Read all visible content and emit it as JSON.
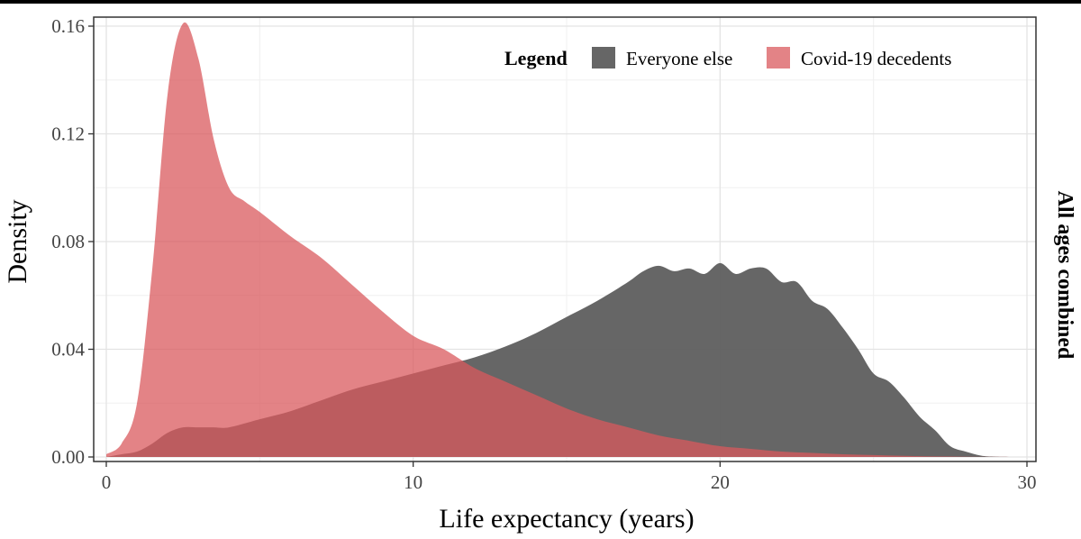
{
  "chart_data": {
    "type": "area",
    "title": "",
    "xlabel": "Life expectancy (years)",
    "ylabel": "Density",
    "facet_label": "All ages combined",
    "xlim": [
      0,
      30
    ],
    "ylim": [
      0,
      0.16
    ],
    "x_ticks": [
      0,
      10,
      20,
      30
    ],
    "x_tick_labels": [
      "0",
      "10",
      "20",
      "30"
    ],
    "y_ticks": [
      0,
      0.04,
      0.08,
      0.12,
      0.16
    ],
    "y_tick_labels": [
      "0.00",
      "0.04",
      "0.08",
      "0.12",
      "0.16"
    ],
    "grid": true,
    "legend": {
      "title": "Legend",
      "placement": "top-right",
      "entries": [
        "Everyone else",
        "Covid-19 decedents"
      ]
    },
    "series": [
      {
        "name": "Everyone else",
        "color": "#5e5e5e",
        "x": [
          0,
          0.5,
          1,
          1.5,
          2,
          2.5,
          3,
          3.5,
          4,
          5,
          6,
          7,
          8,
          9,
          10,
          11,
          12,
          13,
          14,
          15,
          16,
          17,
          17.5,
          18,
          18.5,
          19,
          19.5,
          20,
          20.5,
          21,
          21.5,
          22,
          22.5,
          23,
          23.5,
          24,
          24.5,
          25,
          25.5,
          26,
          26.5,
          27,
          27.5,
          28,
          28.5,
          29,
          30
        ],
        "values": [
          0,
          0.001,
          0.002,
          0.005,
          0.009,
          0.011,
          0.011,
          0.011,
          0.011,
          0.014,
          0.017,
          0.021,
          0.025,
          0.028,
          0.031,
          0.034,
          0.037,
          0.041,
          0.046,
          0.052,
          0.058,
          0.065,
          0.069,
          0.071,
          0.069,
          0.07,
          0.068,
          0.072,
          0.068,
          0.07,
          0.07,
          0.065,
          0.065,
          0.058,
          0.055,
          0.048,
          0.04,
          0.031,
          0.028,
          0.022,
          0.015,
          0.01,
          0.004,
          0.002,
          0.0005,
          0.0001,
          0
        ]
      },
      {
        "name": "Covid-19 decedents",
        "color": "#d9595e",
        "x": [
          0,
          0.5,
          1,
          1.5,
          2,
          2.5,
          3,
          3.5,
          4,
          4.5,
          5,
          6,
          7,
          8,
          9,
          10,
          11,
          12,
          13,
          14,
          15,
          16,
          17,
          18,
          19,
          20,
          21,
          22,
          23,
          24,
          25,
          26,
          27,
          28,
          29,
          30
        ],
        "values": [
          0.001,
          0.005,
          0.02,
          0.07,
          0.135,
          0.161,
          0.148,
          0.118,
          0.1,
          0.095,
          0.091,
          0.082,
          0.074,
          0.064,
          0.054,
          0.045,
          0.04,
          0.033,
          0.028,
          0.023,
          0.018,
          0.014,
          0.011,
          0.008,
          0.006,
          0.004,
          0.003,
          0.002,
          0.0015,
          0.001,
          0.0007,
          0.0004,
          0.0002,
          0.0001,
          5e-05,
          0
        ]
      }
    ]
  }
}
